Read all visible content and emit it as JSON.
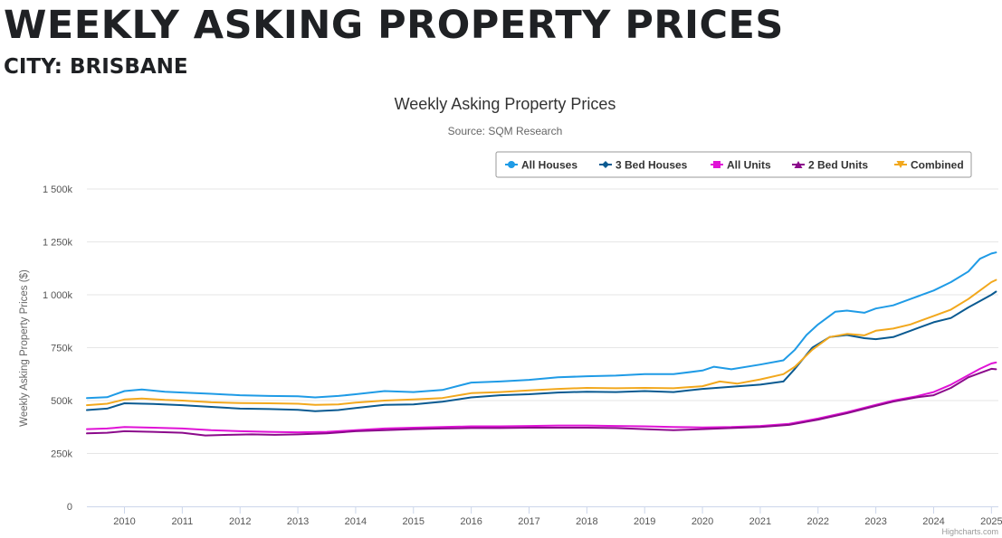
{
  "page": {
    "heading": "WEEKLY ASKING PROPERTY PRICES",
    "subheading": "CITY: BRISBANE"
  },
  "chart_data": {
    "type": "line",
    "title": "Weekly Asking Property Prices",
    "subtitle": "Source: SQM Research",
    "ylabel": "Weekly Asking Property Prices ($)",
    "xlabel": "",
    "xlim": [
      2009.35,
      2025.12
    ],
    "ylim": [
      0,
      1500000
    ],
    "yticks": [
      0,
      250000,
      500000,
      750000,
      1000000,
      1250000,
      1500000
    ],
    "ytick_labels": [
      "0",
      "250k",
      "500k",
      "750k",
      "1 000k",
      "1 250k",
      "1 500k"
    ],
    "xticks": [
      2010,
      2011,
      2012,
      2013,
      2014,
      2015,
      2016,
      2017,
      2018,
      2019,
      2020,
      2021,
      2022,
      2023,
      2024,
      2025
    ],
    "xtick_labels": [
      "2010",
      "2011",
      "2012",
      "2013",
      "2014",
      "2015",
      "2016",
      "2017",
      "2018",
      "2019",
      "2020",
      "2021",
      "2022",
      "2023",
      "2024",
      "2025"
    ],
    "grid": true,
    "legend_position": "top-right",
    "credit": "Highcharts.com",
    "series": [
      {
        "name": "All Houses",
        "color": "#1f9be6",
        "marker": "circle",
        "points": [
          [
            2009.35,
            512000
          ],
          [
            2009.7,
            516000
          ],
          [
            2010.0,
            545000
          ],
          [
            2010.3,
            552000
          ],
          [
            2010.7,
            542000
          ],
          [
            2011.0,
            538000
          ],
          [
            2011.5,
            532000
          ],
          [
            2012.0,
            525000
          ],
          [
            2012.5,
            522000
          ],
          [
            2013.0,
            520000
          ],
          [
            2013.3,
            515000
          ],
          [
            2013.7,
            522000
          ],
          [
            2014.0,
            530000
          ],
          [
            2014.5,
            545000
          ],
          [
            2015.0,
            540000
          ],
          [
            2015.5,
            550000
          ],
          [
            2016.0,
            585000
          ],
          [
            2016.5,
            590000
          ],
          [
            2017.0,
            598000
          ],
          [
            2017.5,
            610000
          ],
          [
            2018.0,
            615000
          ],
          [
            2018.5,
            618000
          ],
          [
            2019.0,
            625000
          ],
          [
            2019.5,
            625000
          ],
          [
            2020.0,
            642000
          ],
          [
            2020.2,
            660000
          ],
          [
            2020.5,
            648000
          ],
          [
            2021.0,
            670000
          ],
          [
            2021.4,
            690000
          ],
          [
            2021.6,
            740000
          ],
          [
            2021.8,
            810000
          ],
          [
            2022.0,
            860000
          ],
          [
            2022.3,
            920000
          ],
          [
            2022.5,
            925000
          ],
          [
            2022.8,
            915000
          ],
          [
            2023.0,
            935000
          ],
          [
            2023.3,
            950000
          ],
          [
            2023.6,
            980000
          ],
          [
            2024.0,
            1020000
          ],
          [
            2024.3,
            1060000
          ],
          [
            2024.6,
            1110000
          ],
          [
            2024.8,
            1170000
          ],
          [
            2025.0,
            1195000
          ],
          [
            2025.08,
            1200000
          ]
        ]
      },
      {
        "name": "3 Bed Houses",
        "color": "#0a5a91",
        "marker": "diamond",
        "points": [
          [
            2009.35,
            455000
          ],
          [
            2009.7,
            462000
          ],
          [
            2010.0,
            487000
          ],
          [
            2010.5,
            484000
          ],
          [
            2011.0,
            478000
          ],
          [
            2011.5,
            470000
          ],
          [
            2012.0,
            462000
          ],
          [
            2012.5,
            460000
          ],
          [
            2013.0,
            456000
          ],
          [
            2013.3,
            450000
          ],
          [
            2013.7,
            455000
          ],
          [
            2014.0,
            465000
          ],
          [
            2014.5,
            480000
          ],
          [
            2015.0,
            482000
          ],
          [
            2015.5,
            495000
          ],
          [
            2016.0,
            515000
          ],
          [
            2016.5,
            525000
          ],
          [
            2017.0,
            530000
          ],
          [
            2017.5,
            538000
          ],
          [
            2018.0,
            542000
          ],
          [
            2018.5,
            540000
          ],
          [
            2019.0,
            545000
          ],
          [
            2019.5,
            540000
          ],
          [
            2020.0,
            555000
          ],
          [
            2020.5,
            565000
          ],
          [
            2021.0,
            575000
          ],
          [
            2021.4,
            590000
          ],
          [
            2021.6,
            650000
          ],
          [
            2021.9,
            750000
          ],
          [
            2022.2,
            800000
          ],
          [
            2022.5,
            810000
          ],
          [
            2022.8,
            795000
          ],
          [
            2023.0,
            790000
          ],
          [
            2023.3,
            800000
          ],
          [
            2023.6,
            830000
          ],
          [
            2024.0,
            870000
          ],
          [
            2024.3,
            890000
          ],
          [
            2024.6,
            940000
          ],
          [
            2024.8,
            970000
          ],
          [
            2025.0,
            1000000
          ],
          [
            2025.08,
            1015000
          ]
        ]
      },
      {
        "name": "All Units",
        "color": "#e012d6",
        "marker": "square",
        "points": [
          [
            2009.35,
            365000
          ],
          [
            2009.7,
            368000
          ],
          [
            2010.0,
            375000
          ],
          [
            2010.5,
            372000
          ],
          [
            2011.0,
            368000
          ],
          [
            2011.5,
            360000
          ],
          [
            2012.0,
            355000
          ],
          [
            2012.5,
            352000
          ],
          [
            2013.0,
            350000
          ],
          [
            2013.5,
            352000
          ],
          [
            2014.0,
            360000
          ],
          [
            2014.5,
            368000
          ],
          [
            2015.0,
            372000
          ],
          [
            2015.5,
            375000
          ],
          [
            2016.0,
            378000
          ],
          [
            2016.5,
            378000
          ],
          [
            2017.0,
            380000
          ],
          [
            2017.5,
            382000
          ],
          [
            2018.0,
            382000
          ],
          [
            2018.5,
            380000
          ],
          [
            2019.0,
            378000
          ],
          [
            2019.5,
            375000
          ],
          [
            2020.0,
            373000
          ],
          [
            2020.5,
            375000
          ],
          [
            2021.0,
            380000
          ],
          [
            2021.5,
            390000
          ],
          [
            2022.0,
            415000
          ],
          [
            2022.5,
            445000
          ],
          [
            2023.0,
            480000
          ],
          [
            2023.3,
            500000
          ],
          [
            2023.7,
            520000
          ],
          [
            2024.0,
            540000
          ],
          [
            2024.3,
            575000
          ],
          [
            2024.6,
            620000
          ],
          [
            2024.8,
            650000
          ],
          [
            2025.0,
            675000
          ],
          [
            2025.08,
            680000
          ]
        ]
      },
      {
        "name": "2 Bed Units",
        "color": "#8b0a8b",
        "marker": "triangle",
        "points": [
          [
            2009.35,
            345000
          ],
          [
            2009.7,
            348000
          ],
          [
            2010.0,
            355000
          ],
          [
            2010.5,
            352000
          ],
          [
            2011.0,
            348000
          ],
          [
            2011.4,
            335000
          ],
          [
            2011.8,
            338000
          ],
          [
            2012.2,
            340000
          ],
          [
            2012.6,
            338000
          ],
          [
            2013.0,
            340000
          ],
          [
            2013.5,
            345000
          ],
          [
            2014.0,
            355000
          ],
          [
            2014.5,
            360000
          ],
          [
            2015.0,
            365000
          ],
          [
            2015.5,
            368000
          ],
          [
            2016.0,
            370000
          ],
          [
            2016.5,
            370000
          ],
          [
            2017.0,
            372000
          ],
          [
            2017.5,
            372000
          ],
          [
            2018.0,
            372000
          ],
          [
            2018.5,
            370000
          ],
          [
            2019.0,
            365000
          ],
          [
            2019.5,
            360000
          ],
          [
            2020.0,
            365000
          ],
          [
            2020.5,
            370000
          ],
          [
            2021.0,
            375000
          ],
          [
            2021.5,
            385000
          ],
          [
            2022.0,
            410000
          ],
          [
            2022.5,
            440000
          ],
          [
            2023.0,
            475000
          ],
          [
            2023.3,
            495000
          ],
          [
            2023.7,
            515000
          ],
          [
            2024.0,
            525000
          ],
          [
            2024.3,
            560000
          ],
          [
            2024.6,
            610000
          ],
          [
            2024.8,
            630000
          ],
          [
            2025.0,
            650000
          ],
          [
            2025.08,
            648000
          ]
        ]
      },
      {
        "name": "Combined",
        "color": "#f2a81d",
        "marker": "triangle-down",
        "points": [
          [
            2009.35,
            478000
          ],
          [
            2009.7,
            485000
          ],
          [
            2010.0,
            505000
          ],
          [
            2010.3,
            510000
          ],
          [
            2010.7,
            503000
          ],
          [
            2011.0,
            500000
          ],
          [
            2011.5,
            492000
          ],
          [
            2012.0,
            488000
          ],
          [
            2012.5,
            487000
          ],
          [
            2013.0,
            485000
          ],
          [
            2013.3,
            480000
          ],
          [
            2013.7,
            482000
          ],
          [
            2014.0,
            490000
          ],
          [
            2014.5,
            500000
          ],
          [
            2015.0,
            505000
          ],
          [
            2015.5,
            512000
          ],
          [
            2016.0,
            535000
          ],
          [
            2016.5,
            540000
          ],
          [
            2017.0,
            548000
          ],
          [
            2017.5,
            555000
          ],
          [
            2018.0,
            560000
          ],
          [
            2018.5,
            558000
          ],
          [
            2019.0,
            560000
          ],
          [
            2019.5,
            558000
          ],
          [
            2020.0,
            568000
          ],
          [
            2020.3,
            590000
          ],
          [
            2020.6,
            580000
          ],
          [
            2021.0,
            600000
          ],
          [
            2021.4,
            625000
          ],
          [
            2021.6,
            660000
          ],
          [
            2021.9,
            740000
          ],
          [
            2022.2,
            800000
          ],
          [
            2022.5,
            815000
          ],
          [
            2022.8,
            808000
          ],
          [
            2023.0,
            830000
          ],
          [
            2023.3,
            840000
          ],
          [
            2023.6,
            860000
          ],
          [
            2024.0,
            900000
          ],
          [
            2024.3,
            930000
          ],
          [
            2024.6,
            980000
          ],
          [
            2024.8,
            1020000
          ],
          [
            2025.0,
            1060000
          ],
          [
            2025.08,
            1070000
          ]
        ]
      }
    ]
  }
}
